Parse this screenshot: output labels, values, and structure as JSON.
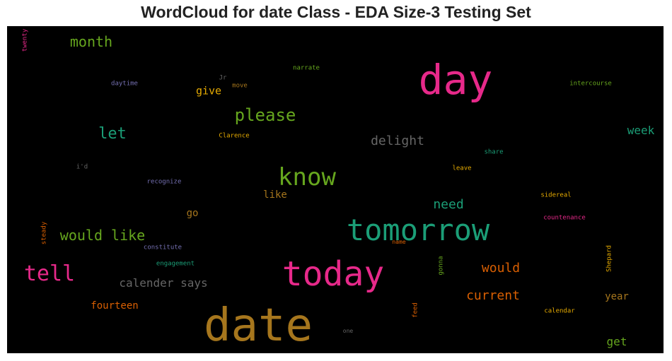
{
  "chart_data": {
    "type": "wordcloud",
    "title": "WordCloud for date Class - EDA Size-3 Testing Set",
    "background": "#000000",
    "words": [
      {
        "text": "date",
        "color": "#a6761d"
      },
      {
        "text": "day",
        "color": "#e7298a"
      },
      {
        "text": "today",
        "color": "#e7298a"
      },
      {
        "text": "tomorrow",
        "color": "#1b9e77"
      },
      {
        "text": "know",
        "color": "#66a61e"
      },
      {
        "text": "tell",
        "color": "#e7298a"
      },
      {
        "text": "please",
        "color": "#66a61e"
      },
      {
        "text": "would like",
        "color": "#66a61e"
      },
      {
        "text": "let",
        "color": "#1b9e77"
      },
      {
        "text": "month",
        "color": "#66a61e"
      },
      {
        "text": "delight",
        "color": "#666666"
      },
      {
        "text": "calender says",
        "color": "#666666"
      },
      {
        "text": "need",
        "color": "#1b9e77"
      },
      {
        "text": "would",
        "color": "#d95f02"
      },
      {
        "text": "current",
        "color": "#d95f02"
      },
      {
        "text": "week",
        "color": "#1b9e77"
      },
      {
        "text": "get",
        "color": "#66a61e"
      },
      {
        "text": "give",
        "color": "#e6ab02"
      },
      {
        "text": "fourteen",
        "color": "#d95f02"
      },
      {
        "text": "year",
        "color": "#a6761d"
      },
      {
        "text": "like",
        "color": "#a6761d"
      },
      {
        "text": "go",
        "color": "#a6761d"
      },
      {
        "text": "twenty",
        "color": "#e7298a"
      },
      {
        "text": "daytime",
        "color": "#7570b3"
      },
      {
        "text": "Jr",
        "color": "#666666"
      },
      {
        "text": "move",
        "color": "#a6761d"
      },
      {
        "text": "narrate",
        "color": "#66a61e"
      },
      {
        "text": "intercourse",
        "color": "#66a61e"
      },
      {
        "text": "Clarence",
        "color": "#e6ab02"
      },
      {
        "text": "share",
        "color": "#1b9e77"
      },
      {
        "text": "leave",
        "color": "#e6ab02"
      },
      {
        "text": "i'd",
        "color": "#666666"
      },
      {
        "text": "recognize",
        "color": "#7570b3"
      },
      {
        "text": "sidereal",
        "color": "#e6ab02"
      },
      {
        "text": "countenance",
        "color": "#e7298a"
      },
      {
        "text": "steady",
        "color": "#d95f02"
      },
      {
        "text": "constitute",
        "color": "#7570b3"
      },
      {
        "text": "name",
        "color": "#d95f02"
      },
      {
        "text": "engagement",
        "color": "#1b9e77"
      },
      {
        "text": "gonna",
        "color": "#66a61e"
      },
      {
        "text": "Shepard",
        "color": "#e6ab02"
      },
      {
        "text": "feed",
        "color": "#d95f02"
      },
      {
        "text": "calendar",
        "color": "#e6ab02"
      },
      {
        "text": "one",
        "color": "#666666"
      }
    ]
  }
}
